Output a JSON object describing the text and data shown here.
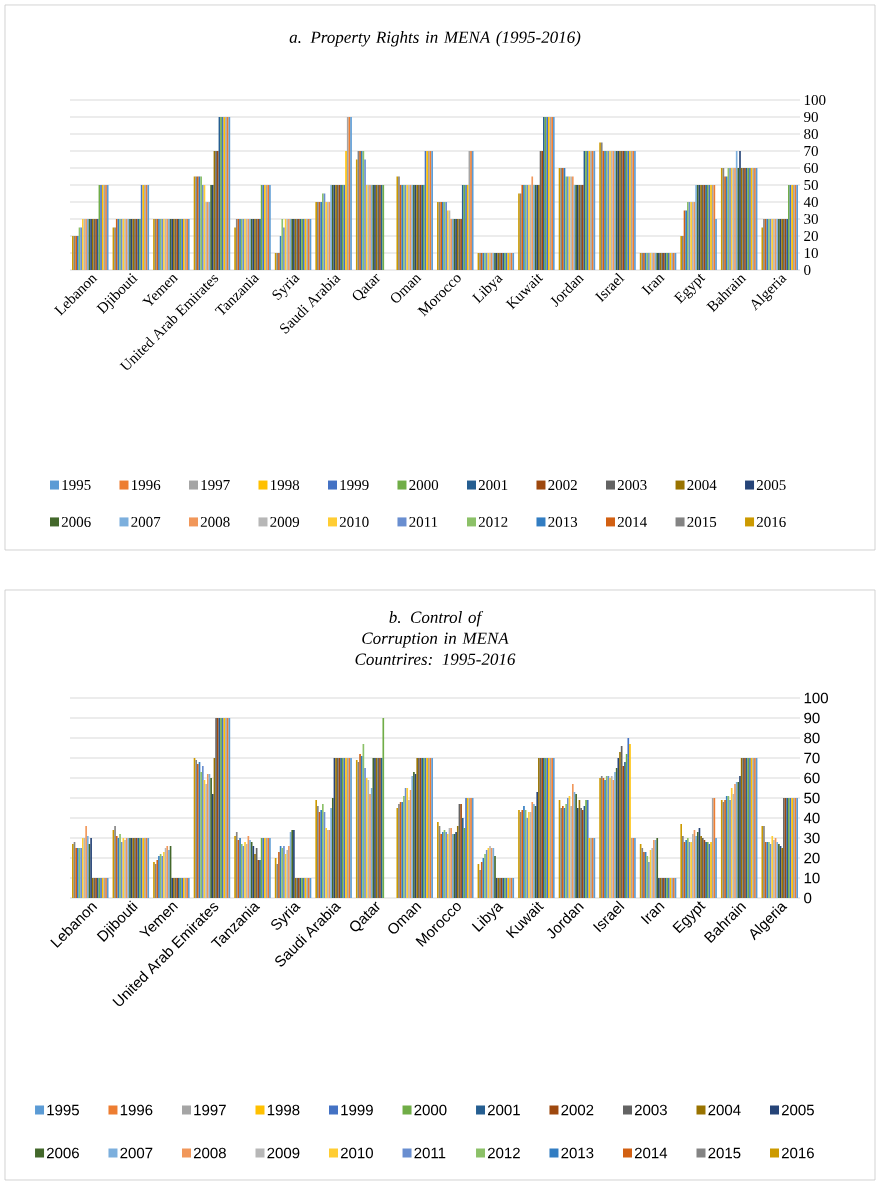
{
  "chart_data": [
    {
      "type": "bar",
      "title": "a. Property Rights in MENA (1995-2016)",
      "categories": [
        "Lebanon",
        "Djibouti",
        "Yemen",
        "United Arab Emirates",
        "Tanzania",
        "Syria",
        "Saudi Arabia",
        "Qatar",
        "Oman",
        "Morocco",
        "Libya",
        "Kuwait",
        "Jordan",
        "Israel",
        "Iran",
        "Egypt",
        "Bahrain",
        "Algeria"
      ],
      "ylim": [
        0,
        100
      ],
      "yticks": [
        0,
        10,
        20,
        30,
        40,
        50,
        60,
        70,
        80,
        90,
        100
      ],
      "grid": "y",
      "legend": "bottom",
      "series": [
        {
          "name": "2016",
          "color": "#cc9a00",
          "values": [
            20,
            25,
            30,
            55,
            25,
            10,
            40,
            65,
            55,
            40,
            10,
            45,
            60,
            75,
            10,
            20,
            60,
            25
          ]
        },
        {
          "name": "2015",
          "color": "#848484",
          "values": [
            20,
            25,
            30,
            55,
            30,
            10,
            40,
            70,
            55,
            40,
            10,
            45,
            60,
            75,
            10,
            20,
            60,
            30
          ]
        },
        {
          "name": "2014",
          "color": "#d26012",
          "values": [
            20,
            30,
            30,
            55,
            30,
            10,
            40,
            70,
            50,
            40,
            10,
            50,
            60,
            70,
            10,
            35,
            55,
            30
          ]
        },
        {
          "name": "2013",
          "color": "#327dc2",
          "values": [
            20,
            30,
            30,
            55,
            30,
            20,
            40,
            70,
            50,
            40,
            10,
            50,
            60,
            70,
            10,
            35,
            55,
            30
          ]
        },
        {
          "name": "2012",
          "color": "#8cc168",
          "values": [
            25,
            30,
            30,
            55,
            30,
            30,
            45,
            70,
            50,
            40,
            10,
            50,
            55,
            70,
            10,
            40,
            60,
            30
          ]
        },
        {
          "name": "2011",
          "color": "#698ed0",
          "values": [
            25,
            30,
            30,
            50,
            30,
            25,
            45,
            65,
            50,
            40,
            10,
            50,
            55,
            70,
            10,
            40,
            60,
            30
          ]
        },
        {
          "name": "2010",
          "color": "#ffcd33",
          "values": [
            30,
            30,
            30,
            50,
            30,
            30,
            40,
            50,
            50,
            35,
            10,
            50,
            55,
            70,
            10,
            40,
            60,
            30
          ]
        },
        {
          "name": "2009",
          "color": "#b7b7b7",
          "values": [
            30,
            30,
            30,
            40,
            30,
            30,
            40,
            50,
            50,
            35,
            10,
            50,
            55,
            70,
            10,
            40,
            60,
            30
          ]
        },
        {
          "name": "2008",
          "color": "#f1975a",
          "values": [
            30,
            30,
            30,
            40,
            30,
            30,
            40,
            50,
            50,
            30,
            10,
            55,
            55,
            70,
            10,
            40,
            60,
            30
          ]
        },
        {
          "name": "2007",
          "color": "#7cafdd",
          "values": [
            30,
            30,
            30,
            40,
            30,
            30,
            50,
            50,
            50,
            30,
            10,
            50,
            50,
            70,
            10,
            50,
            70,
            30
          ]
        },
        {
          "name": "2006",
          "color": "#43682b",
          "values": [
            30,
            30,
            30,
            50,
            30,
            30,
            50,
            50,
            50,
            30,
            10,
            50,
            50,
            70,
            10,
            50,
            60,
            30
          ]
        },
        {
          "name": "2005",
          "color": "#264478",
          "values": [
            30,
            30,
            30,
            50,
            30,
            30,
            50,
            50,
            50,
            30,
            10,
            50,
            50,
            70,
            10,
            50,
            70,
            30
          ]
        },
        {
          "name": "2004",
          "color": "#997300",
          "values": [
            30,
            30,
            30,
            70,
            30,
            30,
            50,
            50,
            50,
            30,
            10,
            50,
            50,
            70,
            10,
            50,
            60,
            30
          ]
        },
        {
          "name": "2003",
          "color": "#636363",
          "values": [
            30,
            30,
            30,
            70,
            30,
            30,
            50,
            50,
            50,
            30,
            10,
            70,
            50,
            70,
            10,
            50,
            60,
            30
          ]
        },
        {
          "name": "2002",
          "color": "#9e480e",
          "values": [
            30,
            30,
            30,
            70,
            30,
            30,
            50,
            50,
            50,
            30,
            10,
            70,
            50,
            70,
            10,
            50,
            60,
            30
          ]
        },
        {
          "name": "2001",
          "color": "#255e91",
          "values": [
            30,
            30,
            30,
            90,
            30,
            30,
            50,
            50,
            50,
            50,
            10,
            90,
            70,
            70,
            10,
            50,
            60,
            30
          ]
        },
        {
          "name": "2000",
          "color": "#70ad47",
          "values": [
            50,
            30,
            30,
            90,
            50,
            30,
            50,
            50,
            50,
            50,
            10,
            90,
            70,
            70,
            10,
            50,
            60,
            50
          ]
        },
        {
          "name": "1999",
          "color": "#4472c4",
          "values": [
            50,
            50,
            30,
            90,
            50,
            30,
            50,
            null,
            70,
            50,
            10,
            90,
            70,
            70,
            10,
            50,
            60,
            50
          ]
        },
        {
          "name": "1998",
          "color": "#ffc000",
          "values": [
            50,
            50,
            30,
            90,
            50,
            30,
            70,
            null,
            70,
            50,
            10,
            90,
            70,
            70,
            10,
            50,
            60,
            50
          ]
        },
        {
          "name": "1997",
          "color": "#a5a5a5",
          "values": [
            50,
            50,
            30,
            90,
            50,
            30,
            90,
            null,
            70,
            70,
            10,
            90,
            70,
            70,
            10,
            50,
            60,
            50
          ]
        },
        {
          "name": "1996",
          "color": "#ed7d31",
          "values": [
            50,
            50,
            30,
            90,
            50,
            30,
            90,
            null,
            70,
            70,
            10,
            90,
            70,
            70,
            10,
            50,
            60,
            50
          ]
        },
        {
          "name": "1995",
          "color": "#5b9bd5",
          "values": [
            50,
            50,
            30,
            90,
            50,
            30,
            90,
            null,
            70,
            70,
            10,
            90,
            70,
            70,
            10,
            30,
            60,
            50
          ]
        }
      ]
    },
    {
      "type": "bar",
      "title": "b. Control of Corruption in MENA Countrires: 1995-2016",
      "categories": [
        "Lebanon",
        "Djibouti",
        "Yemen",
        "United Arab Emirates",
        "Tanzania",
        "Syria",
        "Saudi Arabia",
        "Qatar",
        "Oman",
        "Morocco",
        "Libya",
        "Kuwait",
        "Jordan",
        "Israel",
        "Iran",
        "Egypt",
        "Bahrain",
        "Algeria"
      ],
      "ylim": [
        0,
        100
      ],
      "yticks": [
        0,
        10,
        20,
        30,
        40,
        50,
        60,
        70,
        80,
        90,
        100
      ],
      "grid": "y",
      "legend": "bottom",
      "series": [
        {
          "name": "2016",
          "color": "#cc9a00",
          "values": [
            27,
            34,
            18,
            70,
            31,
            20,
            49,
            69,
            45,
            38,
            17,
            44,
            49,
            60,
            27,
            37,
            49,
            36
          ]
        },
        {
          "name": "2015",
          "color": "#848484",
          "values": [
            28,
            36,
            17,
            69,
            33,
            17,
            46,
            68,
            47,
            36,
            14,
            43,
            45,
            61,
            25,
            31,
            48,
            36
          ]
        },
        {
          "name": "2014",
          "color": "#d26012",
          "values": [
            25,
            31,
            19,
            67,
            29,
            23,
            43,
            72,
            48,
            32,
            18,
            44,
            46,
            60,
            23,
            28,
            49,
            28
          ]
        },
        {
          "name": "2013",
          "color": "#327dc2",
          "values": [
            25,
            30,
            21,
            68,
            30,
            26,
            44,
            71,
            48,
            33,
            20,
            46,
            45,
            59,
            23,
            29,
            51,
            28
          ]
        },
        {
          "name": "2012",
          "color": "#8cc168",
          "values": [
            25,
            32,
            22,
            63,
            27,
            25,
            47,
            77,
            51,
            34,
            22,
            44,
            47,
            61,
            21,
            30,
            51,
            28
          ]
        },
        {
          "name": "2011",
          "color": "#698ed0",
          "values": [
            25,
            28,
            21,
            66,
            26,
            26,
            43,
            65,
            55,
            33,
            24,
            40,
            50,
            61,
            18,
            28,
            49,
            27
          ]
        },
        {
          "name": "2010",
          "color": "#ffcd33",
          "values": [
            30,
            30,
            23,
            59,
            28,
            22,
            35,
            60,
            55,
            32,
            25,
            43,
            51,
            60,
            24,
            28,
            55,
            31
          ]
        },
        {
          "name": "2009",
          "color": "#b7b7b7",
          "values": [
            30,
            29,
            25,
            57,
            27,
            24,
            34,
            59,
            49,
            35,
            26,
            43,
            46,
            61,
            25,
            32,
            52,
            29
          ]
        },
        {
          "name": "2008",
          "color": "#f1975a",
          "values": [
            36,
            30,
            26,
            62,
            31,
            26,
            34,
            52,
            54,
            35,
            25,
            48,
            57,
            59,
            29,
            34,
            57,
            30
          ]
        },
        {
          "name": "2007",
          "color": "#7cafdd",
          "values": [
            31,
            30,
            24,
            62,
            29,
            33,
            45,
            55,
            61,
            32,
            25,
            47,
            53,
            63,
            29,
            31,
            58,
            28
          ]
        },
        {
          "name": "2006",
          "color": "#43682b",
          "values": [
            27,
            30,
            26,
            60,
            28,
            34,
            50,
            70,
            63,
            32,
            21,
            46,
            52,
            65,
            30,
            33,
            58,
            27
          ]
        },
        {
          "name": "2005",
          "color": "#264478",
          "values": [
            30,
            30,
            10,
            52,
            26,
            34,
            70,
            70,
            62,
            33,
            10,
            53,
            45,
            70,
            10,
            35,
            61,
            26
          ]
        },
        {
          "name": "2004",
          "color": "#997300",
          "values": [
            10,
            30,
            10,
            70,
            22,
            10,
            70,
            70,
            70,
            36,
            10,
            70,
            49,
            73,
            10,
            31,
            70,
            25
          ]
        },
        {
          "name": "2003",
          "color": "#636363",
          "values": [
            10,
            30,
            10,
            90,
            25,
            10,
            70,
            70,
            70,
            47,
            10,
            70,
            45,
            76,
            10,
            30,
            70,
            50
          ]
        },
        {
          "name": "2002",
          "color": "#9e480e",
          "values": [
            10,
            30,
            10,
            90,
            19,
            10,
            70,
            70,
            70,
            47,
            10,
            70,
            44,
            66,
            10,
            29,
            70,
            50
          ]
        },
        {
          "name": "2001",
          "color": "#255e91",
          "values": [
            10,
            30,
            10,
            90,
            19,
            10,
            70,
            70,
            70,
            40,
            10,
            70,
            46,
            68,
            10,
            28,
            70,
            50
          ]
        },
        {
          "name": "2000",
          "color": "#70ad47",
          "values": [
            10,
            30,
            10,
            90,
            30,
            10,
            70,
            90,
            70,
            35,
            10,
            70,
            49,
            72,
            10,
            28,
            70,
            50
          ]
        },
        {
          "name": "1999",
          "color": "#4472c4",
          "values": [
            10,
            30,
            10,
            90,
            30,
            10,
            70,
            null,
            70,
            50,
            10,
            70,
            49,
            80,
            10,
            27,
            70,
            50
          ]
        },
        {
          "name": "1998",
          "color": "#ffc000",
          "values": [
            10,
            30,
            10,
            90,
            30,
            10,
            70,
            null,
            70,
            50,
            10,
            70,
            30,
            77,
            10,
            28,
            70,
            50
          ]
        },
        {
          "name": "1997",
          "color": "#a5a5a5",
          "values": [
            10,
            30,
            10,
            90,
            30,
            10,
            70,
            null,
            70,
            50,
            10,
            70,
            30,
            30,
            10,
            50,
            70,
            50
          ]
        },
        {
          "name": "1996",
          "color": "#ed7d31",
          "values": [
            10,
            30,
            10,
            90,
            30,
            10,
            70,
            null,
            70,
            50,
            10,
            70,
            30,
            30,
            10,
            50,
            70,
            50
          ]
        },
        {
          "name": "1995",
          "color": "#5b9bd5",
          "values": [
            10,
            30,
            10,
            90,
            30,
            10,
            70,
            null,
            70,
            50,
            10,
            70,
            30,
            30,
            10,
            30,
            70,
            50
          ]
        }
      ]
    }
  ]
}
